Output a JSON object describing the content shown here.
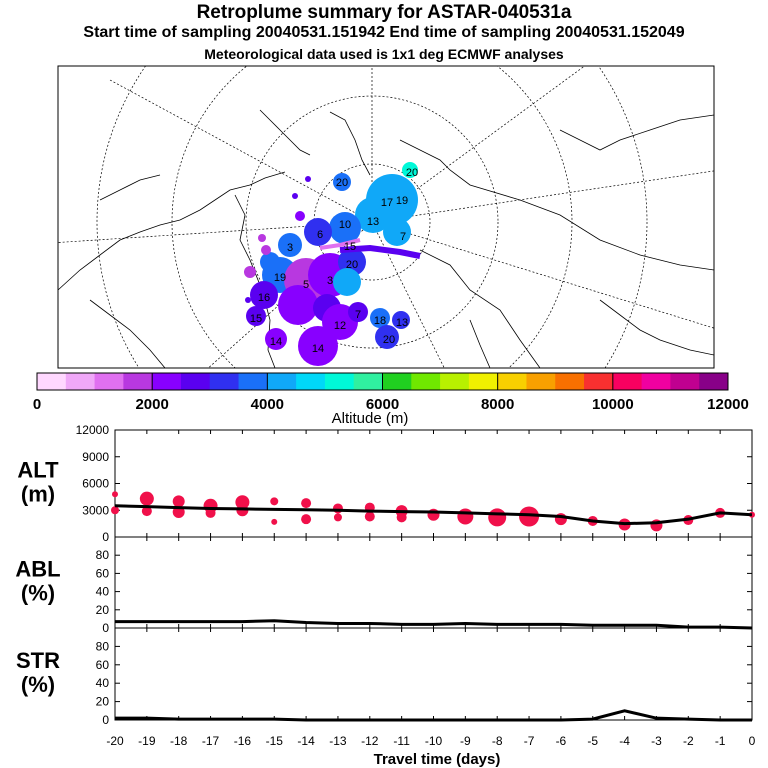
{
  "header": {
    "title": "Retroplume summary for ASTAR-040531a",
    "line2": "Start time of sampling 20040531.151942     End time of sampling 20040531.152049",
    "line3": "Meteorological data used is 1x1 deg ECMWF analyses"
  },
  "map": {
    "labels": [
      "20",
      "17",
      "19",
      "13",
      "7",
      "10",
      "6",
      "3",
      "15",
      "20",
      "19",
      "16",
      "15",
      "14",
      "3",
      "12",
      "7",
      "18",
      "13",
      "20",
      "14",
      "5",
      "20"
    ]
  },
  "colorbar": {
    "title": "Altitude (m)",
    "tick_labels": [
      "0",
      "2000",
      "4000",
      "6000",
      "8000",
      "10000",
      "12000"
    ],
    "colors": [
      "#ffd8ff",
      "#f0a8f8",
      "#e070f0",
      "#b838e0",
      "#8800ff",
      "#5a00f0",
      "#3030f0",
      "#1a70f8",
      "#10a8f8",
      "#00d8f8",
      "#00f8d8",
      "#30f0a0",
      "#20d020",
      "#70e800",
      "#b8f000",
      "#f0f000",
      "#f8d000",
      "#f8a000",
      "#f87000",
      "#f83030",
      "#f80060",
      "#f000a0",
      "#c00090",
      "#880088"
    ]
  },
  "chart_data": [
    {
      "type": "line",
      "name": "ALT",
      "ylabel": "ALT\n(m)",
      "ylabel_lines": [
        "ALT",
        "(m)"
      ],
      "ylim": [
        0,
        12000
      ],
      "yticks": [
        "0",
        "3000",
        "6000",
        "9000",
        "12000"
      ],
      "xlim": [
        -20,
        0
      ],
      "x": [
        -20,
        -19,
        -18,
        -17,
        -16,
        -15,
        -14,
        -13,
        -12,
        -11,
        -10,
        -9,
        -8,
        -7,
        -6,
        -5,
        -4,
        -3,
        -2,
        -1,
        0
      ],
      "values": [
        3500,
        3400,
        3300,
        3200,
        3150,
        3100,
        3050,
        3000,
        2900,
        2850,
        2800,
        2700,
        2600,
        2500,
        2300,
        1800,
        1500,
        1600,
        2000,
        2700,
        2500
      ],
      "markers": [
        {
          "x": -20,
          "y": 4800,
          "s": 3
        },
        {
          "x": -20,
          "y": 3000,
          "s": 4
        },
        {
          "x": -19,
          "y": 4300,
          "s": 7
        },
        {
          "x": -19,
          "y": 2900,
          "s": 5
        },
        {
          "x": -18,
          "y": 4000,
          "s": 6
        },
        {
          "x": -18,
          "y": 2800,
          "s": 6
        },
        {
          "x": -17,
          "y": 3500,
          "s": 7
        },
        {
          "x": -17,
          "y": 2700,
          "s": 5
        },
        {
          "x": -16,
          "y": 3900,
          "s": 7
        },
        {
          "x": -16,
          "y": 3000,
          "s": 6
        },
        {
          "x": -15,
          "y": 4000,
          "s": 4
        },
        {
          "x": -15,
          "y": 1700,
          "s": 3
        },
        {
          "x": -14,
          "y": 3800,
          "s": 5
        },
        {
          "x": -14,
          "y": 2000,
          "s": 5
        },
        {
          "x": -13,
          "y": 3200,
          "s": 5
        },
        {
          "x": -13,
          "y": 2200,
          "s": 4
        },
        {
          "x": -12,
          "y": 3300,
          "s": 5
        },
        {
          "x": -12,
          "y": 2300,
          "s": 5
        },
        {
          "x": -11,
          "y": 2900,
          "s": 6
        },
        {
          "x": -11,
          "y": 2200,
          "s": 5
        },
        {
          "x": -10,
          "y": 2500,
          "s": 6
        },
        {
          "x": -9,
          "y": 2300,
          "s": 8
        },
        {
          "x": -8,
          "y": 2200,
          "s": 9
        },
        {
          "x": -7,
          "y": 2300,
          "s": 10
        },
        {
          "x": -6,
          "y": 2000,
          "s": 6
        },
        {
          "x": -5,
          "y": 1800,
          "s": 5
        },
        {
          "x": -4,
          "y": 1400,
          "s": 6
        },
        {
          "x": -3,
          "y": 1300,
          "s": 6
        },
        {
          "x": -2,
          "y": 1900,
          "s": 5
        },
        {
          "x": -1,
          "y": 2700,
          "s": 5
        },
        {
          "x": 0,
          "y": 2500,
          "s": 3
        }
      ],
      "line_color": "#000000",
      "marker_color": "#f0104a"
    },
    {
      "type": "line",
      "name": "ABL",
      "ylabel_lines": [
        "ABL",
        "(%)"
      ],
      "ylim": [
        0,
        100
      ],
      "yticks": [
        "0",
        "20",
        "40",
        "60",
        "80"
      ],
      "xlim": [
        -20,
        0
      ],
      "x": [
        -20,
        -19,
        -18,
        -17,
        -16,
        -15,
        -14,
        -13,
        -12,
        -11,
        -10,
        -9,
        -8,
        -7,
        -6,
        -5,
        -4,
        -3,
        -2,
        -1,
        0
      ],
      "values": [
        7,
        7,
        7,
        7,
        7,
        8,
        6,
        5,
        5,
        4,
        4,
        5,
        4,
        4,
        4,
        3,
        3,
        3,
        1,
        1,
        0
      ],
      "line_color": "#000000"
    },
    {
      "type": "line",
      "name": "STR",
      "ylabel_lines": [
        "STR",
        "(%)"
      ],
      "ylim": [
        0,
        100
      ],
      "yticks": [
        "0",
        "20",
        "40",
        "60",
        "80"
      ],
      "xlim": [
        -20,
        0
      ],
      "x": [
        -20,
        -19,
        -18,
        -17,
        -16,
        -15,
        -14,
        -13,
        -12,
        -11,
        -10,
        -9,
        -8,
        -7,
        -6,
        -5,
        -4,
        -3,
        -2,
        -1,
        0
      ],
      "values": [
        2,
        2,
        1,
        1,
        1,
        1,
        0,
        0,
        0,
        0,
        0,
        0,
        0,
        0,
        0,
        1,
        10,
        2,
        1,
        0,
        0
      ],
      "line_color": "#000000"
    }
  ],
  "xaxis": {
    "tick_labels": [
      "-20",
      "-19",
      "-18",
      "-17",
      "-16",
      "-15",
      "-14",
      "-13",
      "-12",
      "-11",
      "-10",
      "-9",
      "-8",
      "-7",
      "-6",
      "-5",
      "-4",
      "-3",
      "-2",
      "-1",
      "0"
    ],
    "xlabel": "Travel time (days)"
  }
}
